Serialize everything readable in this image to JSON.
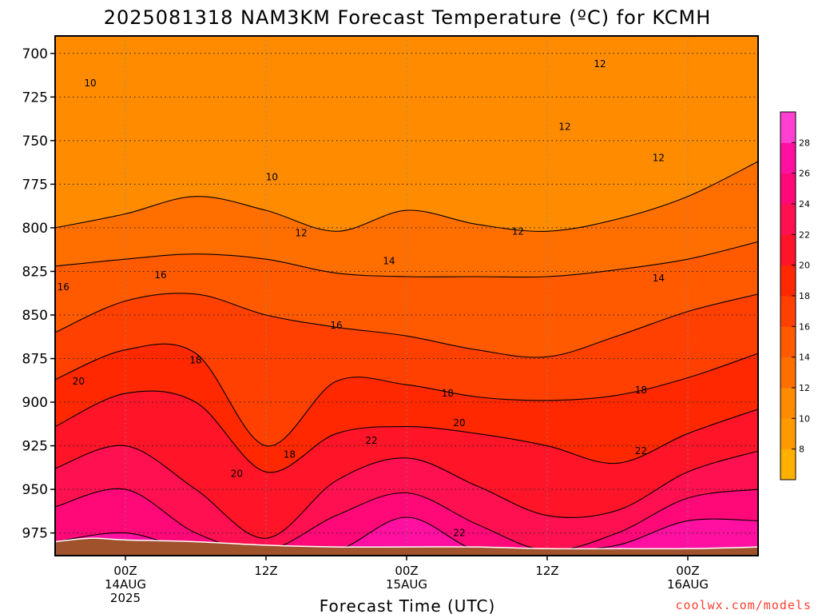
{
  "chart_data": {
    "type": "contour",
    "title": "2025081318 NAM3KM Forecast Temperature (ºC) for KCMH",
    "xlabel": "Forecast Time (UTC)",
    "ylabel": "",
    "y_scale": "pressure (hPa), decreasing upward",
    "ylim": [
      988,
      690
    ],
    "y_ticks": [
      700,
      725,
      750,
      775,
      800,
      825,
      850,
      875,
      900,
      925,
      950,
      975
    ],
    "xlim": [
      -6,
      54
    ],
    "x_ticks": [
      {
        "hour": 0,
        "lines": [
          "00Z",
          "14AUG",
          "2025"
        ]
      },
      {
        "hour": 12,
        "lines": [
          "12Z"
        ]
      },
      {
        "hour": 24,
        "lines": [
          "00Z",
          "15AUG"
        ]
      },
      {
        "hour": 36,
        "lines": [
          "12Z"
        ]
      },
      {
        "hour": 48,
        "lines": [
          "00Z",
          "16AUG"
        ]
      }
    ],
    "grid": true,
    "colorbar": {
      "position": "right",
      "levels": [
        6,
        8,
        10,
        12,
        14,
        16,
        18,
        20,
        22,
        24,
        26,
        28,
        30
      ],
      "tick_labels": [
        "8",
        "10",
        "12",
        "14",
        "16",
        "18",
        "20",
        "22",
        "24",
        "26",
        "28"
      ],
      "colors": [
        "#ffb000",
        "#ff9900",
        "#ff8c00",
        "#ff6f00",
        "#ff5a00",
        "#ff4000",
        "#ff2800",
        "#ff1428",
        "#ff1050",
        "#ff0878",
        "#ff10a0",
        "#ff40d0"
      ]
    },
    "temperature_bands": [
      {
        "temp_c": 12,
        "pressure_hpa": [
          [
            -6,
            800
          ],
          [
            0,
            792
          ],
          [
            6,
            782
          ],
          [
            12,
            790
          ],
          [
            18,
            802
          ],
          [
            24,
            790
          ],
          [
            30,
            798
          ],
          [
            36,
            802
          ],
          [
            42,
            795
          ],
          [
            48,
            782
          ],
          [
            54,
            762
          ]
        ]
      },
      {
        "temp_c": 14,
        "pressure_hpa": [
          [
            -6,
            822
          ],
          [
            0,
            818
          ],
          [
            6,
            815
          ],
          [
            12,
            818
          ],
          [
            18,
            826
          ],
          [
            24,
            828
          ],
          [
            30,
            828
          ],
          [
            36,
            828
          ],
          [
            42,
            824
          ],
          [
            48,
            818
          ],
          [
            54,
            808
          ]
        ]
      },
      {
        "temp_c": 16,
        "pressure_hpa": [
          [
            -6,
            860
          ],
          [
            0,
            842
          ],
          [
            6,
            838
          ],
          [
            12,
            850
          ],
          [
            18,
            857
          ],
          [
            24,
            862
          ],
          [
            30,
            870
          ],
          [
            36,
            874
          ],
          [
            42,
            862
          ],
          [
            48,
            848
          ],
          [
            54,
            838
          ]
        ]
      },
      {
        "temp_c": 18,
        "pressure_hpa": [
          [
            -6,
            887
          ],
          [
            0,
            870
          ],
          [
            6,
            872
          ],
          [
            12,
            925
          ],
          [
            18,
            888
          ],
          [
            24,
            890
          ],
          [
            30,
            897
          ],
          [
            36,
            899
          ],
          [
            42,
            896
          ],
          [
            48,
            886
          ],
          [
            54,
            872
          ]
        ]
      },
      {
        "temp_c": 20,
        "pressure_hpa": [
          [
            -6,
            914
          ],
          [
            0,
            895
          ],
          [
            6,
            900
          ],
          [
            12,
            940
          ],
          [
            18,
            918
          ],
          [
            24,
            914
          ],
          [
            30,
            918
          ],
          [
            36,
            925
          ],
          [
            42,
            935
          ],
          [
            48,
            918
          ],
          [
            54,
            904
          ]
        ]
      },
      {
        "temp_c": 22,
        "pressure_hpa": [
          [
            -6,
            938
          ],
          [
            0,
            925
          ],
          [
            6,
            950
          ],
          [
            12,
            978
          ],
          [
            18,
            945
          ],
          [
            24,
            932
          ],
          [
            30,
            948
          ],
          [
            36,
            965
          ],
          [
            42,
            962
          ],
          [
            48,
            940
          ],
          [
            54,
            928
          ]
        ]
      },
      {
        "temp_c": 24,
        "pressure_hpa": [
          [
            -6,
            960
          ],
          [
            0,
            950
          ],
          [
            6,
            975
          ],
          [
            12,
            985
          ],
          [
            18,
            965
          ],
          [
            24,
            952
          ],
          [
            30,
            970
          ],
          [
            36,
            985
          ],
          [
            42,
            975
          ],
          [
            48,
            955
          ],
          [
            54,
            950
          ]
        ]
      },
      {
        "temp_c": 26,
        "pressure_hpa": [
          [
            -6,
            980
          ],
          [
            0,
            975
          ],
          [
            6,
            985
          ],
          [
            12,
            985
          ],
          [
            18,
            985
          ],
          [
            24,
            966
          ],
          [
            30,
            985
          ],
          [
            36,
            985
          ],
          [
            42,
            982
          ],
          [
            48,
            968
          ],
          [
            54,
            968
          ]
        ]
      }
    ],
    "contour_labels": [
      {
        "text": "10",
        "x": -3,
        "y": 717
      },
      {
        "text": "10",
        "x": 12.5,
        "y": 771
      },
      {
        "text": "12",
        "x": 40.5,
        "y": 706
      },
      {
        "text": "12",
        "x": 37.5,
        "y": 742
      },
      {
        "text": "12",
        "x": 45.5,
        "y": 760
      },
      {
        "text": "12",
        "x": 15,
        "y": 803
      },
      {
        "text": "12",
        "x": 33.5,
        "y": 802
      },
      {
        "text": "14",
        "x": 22.5,
        "y": 819
      },
      {
        "text": "14",
        "x": 45.5,
        "y": 829
      },
      {
        "text": "16",
        "x": -5.3,
        "y": 834
      },
      {
        "text": "16",
        "x": 3,
        "y": 827
      },
      {
        "text": "16",
        "x": 18,
        "y": 856
      },
      {
        "text": "18",
        "x": 6,
        "y": 876
      },
      {
        "text": "18",
        "x": 27.5,
        "y": 895
      },
      {
        "text": "18",
        "x": 44,
        "y": 893
      },
      {
        "text": "18",
        "x": 14,
        "y": 930
      },
      {
        "text": "20",
        "x": -4,
        "y": 888
      },
      {
        "text": "20",
        "x": 28.5,
        "y": 912
      },
      {
        "text": "20",
        "x": 9.5,
        "y": 941
      },
      {
        "text": "22",
        "x": 21,
        "y": 922
      },
      {
        "text": "22",
        "x": 44,
        "y": 928
      },
      {
        "text": "22",
        "x": 28.5,
        "y": 975
      }
    ],
    "ground_surface_hpa": [
      [
        -6,
        980
      ],
      [
        -3,
        978
      ],
      [
        0,
        979
      ],
      [
        6,
        980
      ],
      [
        12,
        982
      ],
      [
        18,
        983
      ],
      [
        24,
        983
      ],
      [
        30,
        983
      ],
      [
        36,
        984
      ],
      [
        42,
        984
      ],
      [
        48,
        984
      ],
      [
        54,
        983
      ]
    ]
  },
  "credit": "coolwx.com/models"
}
